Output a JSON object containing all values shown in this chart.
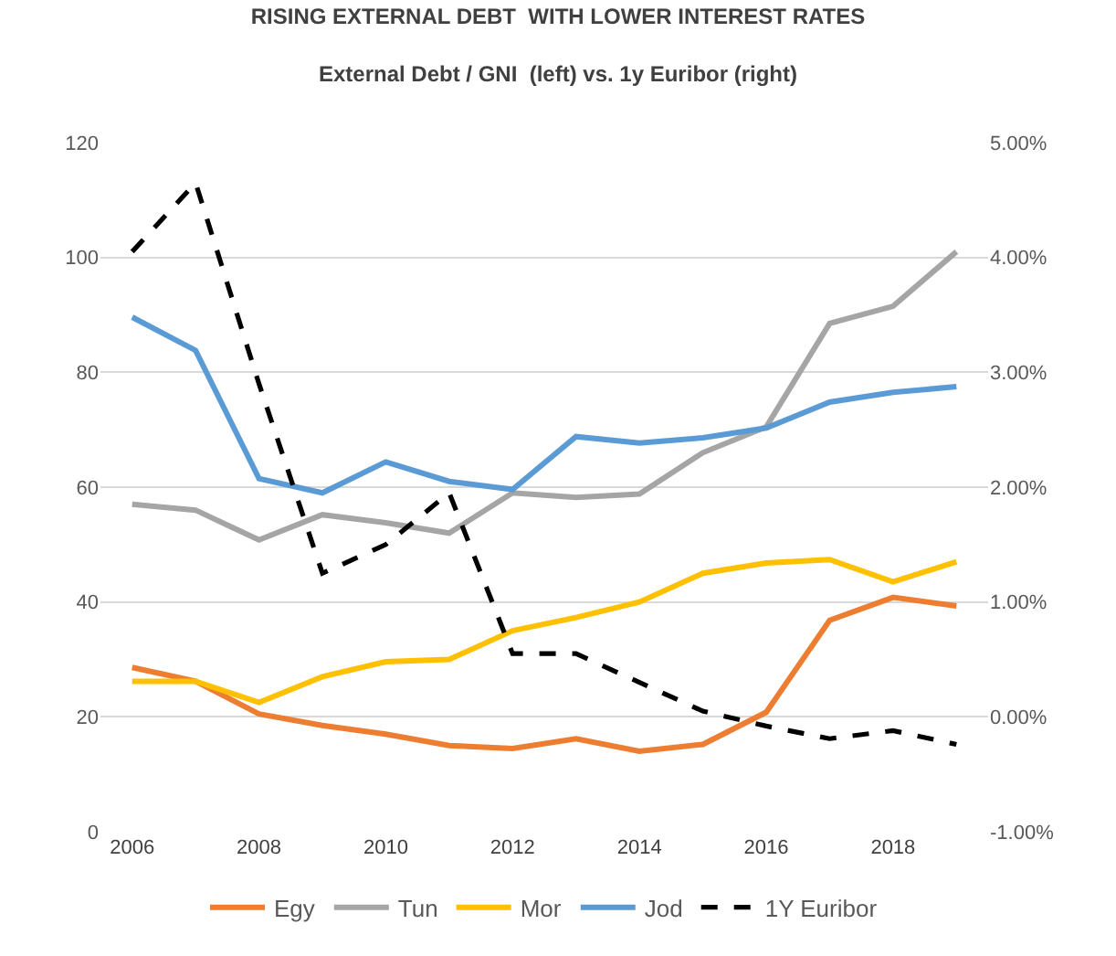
{
  "chart_data": {
    "type": "line",
    "title": "RISING EXTERNAL DEBT  WITH LOWER INTEREST RATES",
    "subtitle": "External Debt / GNI  (left) vs. 1y Euribor (right)",
    "x": [
      2006,
      2007,
      2008,
      2009,
      2010,
      2011,
      2012,
      2013,
      2014,
      2015,
      2016,
      2017,
      2018,
      2019
    ],
    "xlim": [
      2005.5,
      2019.5
    ],
    "xticks": [
      2006,
      2008,
      2010,
      2012,
      2014,
      2016,
      2018
    ],
    "ylim": [
      0,
      120
    ],
    "yticks": [
      0,
      20,
      40,
      60,
      80,
      100,
      120
    ],
    "y2lim": [
      -1,
      5
    ],
    "y2ticks": [
      {
        "value": -1,
        "label": "-1.00%"
      },
      {
        "value": 0,
        "label": "0.00%"
      },
      {
        "value": 1,
        "label": "1.00%"
      },
      {
        "value": 2,
        "label": "2.00%"
      },
      {
        "value": 3,
        "label": "3.00%"
      },
      {
        "value": 4,
        "label": "4.00%"
      },
      {
        "value": 5,
        "label": "5.00%"
      }
    ],
    "grid": "y",
    "legend": "bottom",
    "marker": "none",
    "series": [
      {
        "name": "Egy",
        "color": "#ed7d31",
        "line_style": "solid",
        "values": [
          28.6,
          26.2,
          20.5,
          18.5,
          17,
          15,
          14.5,
          16.2,
          14,
          15.2,
          20.8,
          36.8,
          40.8,
          39.3
        ]
      },
      {
        "name": "Tun",
        "color": "#a5a5a5",
        "line_style": "solid",
        "values": [
          57,
          56,
          50.8,
          55.2,
          53.8,
          52,
          59,
          58.2,
          58.8,
          66,
          70.5,
          88.5,
          91.5,
          101
        ]
      },
      {
        "name": "Mor",
        "color": "#ffc000",
        "line_style": "solid",
        "values": [
          26.2,
          26.2,
          22.5,
          27,
          29.6,
          30,
          35,
          37.3,
          40,
          45,
          46.8,
          47.4,
          43.5,
          47
        ]
      },
      {
        "name": "Jod",
        "color": "#5b9bd5",
        "line_style": "solid",
        "values": [
          89.6,
          83.8,
          61.5,
          59,
          64.4,
          61,
          59.6,
          68.8,
          67.7,
          68.6,
          70.3,
          74.8,
          76.5,
          77.5
        ]
      },
      {
        "name": "1Y Euribor",
        "color": "#000000",
        "line_style": "dashed",
        "axis": "y2",
        "values": [
          4.05,
          4.65,
          2.9,
          1.25,
          1.5,
          1.95,
          0.55,
          0.55,
          0.3,
          0.05,
          -0.08,
          -0.19,
          -0.12,
          -0.24
        ]
      }
    ]
  }
}
